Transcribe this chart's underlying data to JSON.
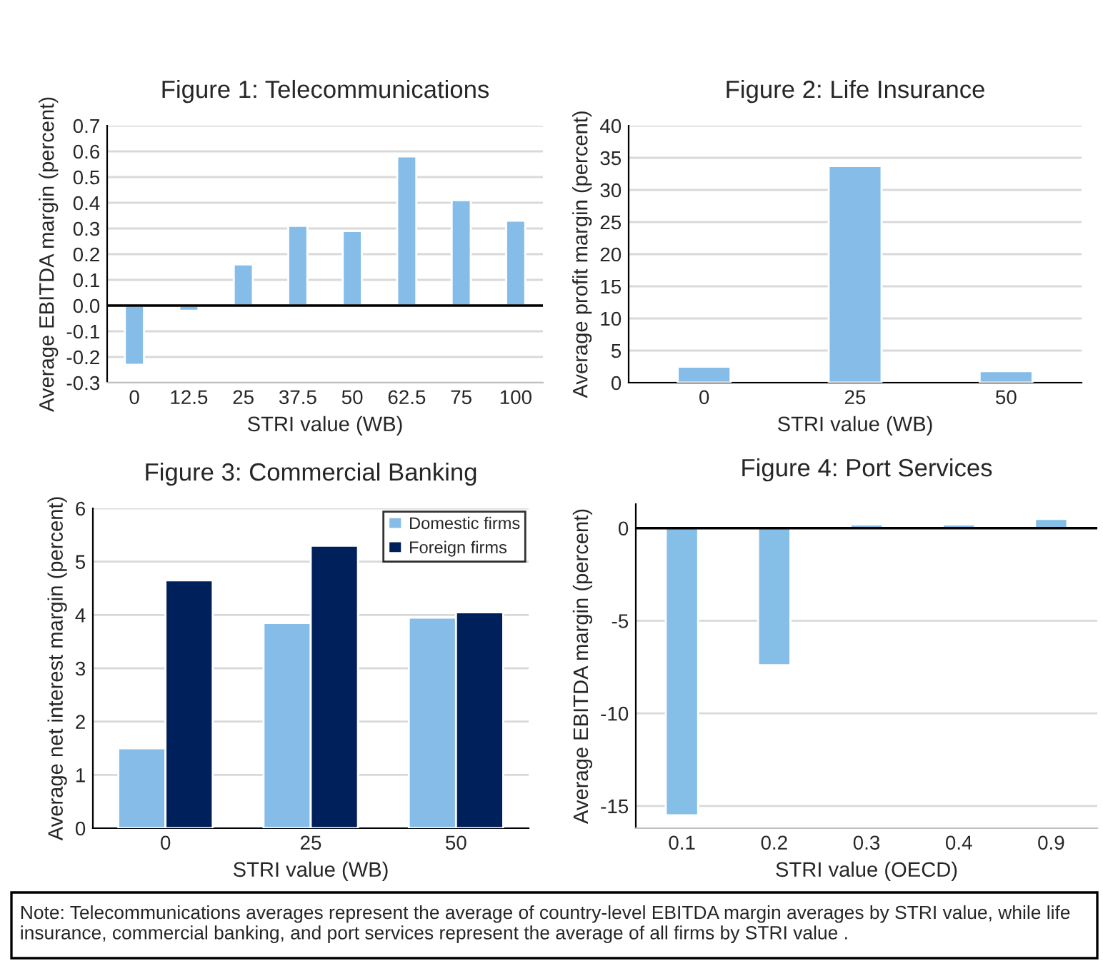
{
  "chart_data": [
    {
      "type": "bar",
      "title": "Figure 1: Telecommunications",
      "xlabel": "STRI value (WB)",
      "ylabel": "Average EBITDA margin (percent)",
      "categories": [
        "0",
        "12.5",
        "25",
        "37.5",
        "50",
        "62.5",
        "75",
        "100"
      ],
      "series": [
        {
          "color": "#85bde8",
          "values": [
            -0.23,
            -0.02,
            0.16,
            0.31,
            0.29,
            0.58,
            0.41,
            0.33
          ]
        }
      ],
      "ylim": [
        -0.3,
        0.7
      ],
      "yticks": [
        -0.3,
        -0.2,
        -0.1,
        {
          "value": 0,
          "label": "0.0"
        },
        0.1,
        0.2,
        0.3,
        0.4,
        0.5,
        0.6,
        0.7
      ],
      "grid": "y"
    },
    {
      "type": "bar",
      "title": "Figure 2: Life Insurance",
      "xlabel": "STRI value (WB)",
      "ylabel": "Average profit margin (percent)",
      "categories": [
        "0",
        "25",
        "50"
      ],
      "series": [
        {
          "color": "#85bde8",
          "values": [
            2.5,
            33.7,
            1.8
          ]
        }
      ],
      "ylim": [
        0,
        40
      ],
      "yticks": [
        0,
        5,
        10,
        15,
        20,
        25,
        30,
        35,
        40
      ],
      "grid": "y"
    },
    {
      "type": "bar",
      "title": "Figure 3: Commercial Banking",
      "xlabel": "STRI value (WB)",
      "ylabel": "Average net interest margin (percent)",
      "categories": [
        "0",
        "25",
        "50"
      ],
      "series": [
        {
          "name": "Domestic firms",
          "color": "#85bde8",
          "values": [
            1.5,
            3.85,
            3.95
          ]
        },
        {
          "name": "Foreign firms",
          "color": "#00205b",
          "values": [
            4.65,
            5.3,
            4.05
          ]
        }
      ],
      "ylim": [
        0,
        6
      ],
      "yticks": [
        0,
        1,
        2,
        3,
        4,
        5,
        6
      ],
      "grid": "y",
      "legend": "top right"
    },
    {
      "type": "bar",
      "title": "Figure 4: Port Services",
      "xlabel": "STRI value (OECD)",
      "ylabel": "Average EBITDA margin (percent)",
      "categories": [
        "0.1",
        "0.2",
        "0.3",
        "0.4",
        "0.9"
      ],
      "series": [
        {
          "color": "#85bfe8",
          "values": [
            -15.5,
            -7.4,
            0.2,
            0.2,
            0.5
          ]
        }
      ],
      "ylim": [
        -16.2,
        1.3
      ],
      "yticks": [
        -15,
        -10,
        -5,
        0
      ],
      "grid": "y",
      "annotations": [
        "Note: Telecommunications averages represent the average of country-level EBITDA margin averages by STRI value, while life insurance, commercial banking, and port services represent the average of all firms by STRI value ."
      ]
    }
  ]
}
